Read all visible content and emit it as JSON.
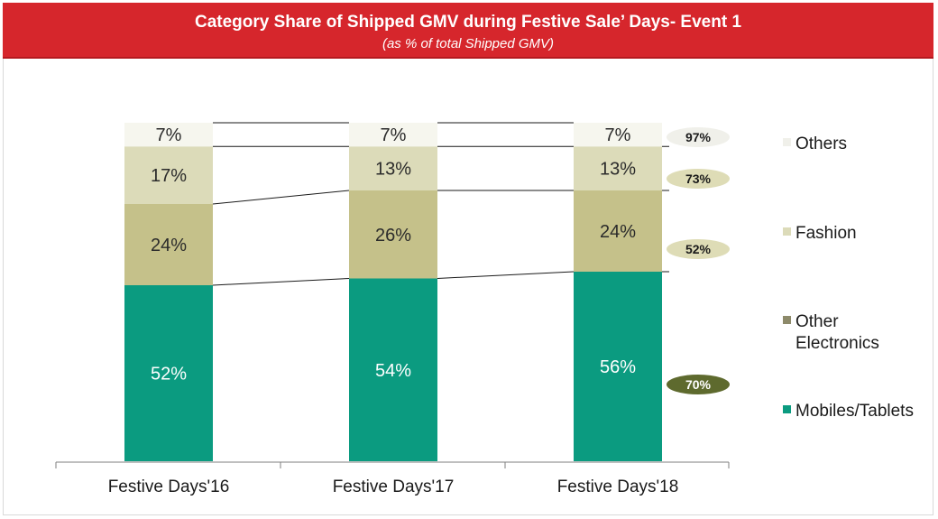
{
  "title": "Category Share of Shipped GMV during Festive Sale’ Days- Event 1",
  "subtitle": "(as % of total Shipped GMV)",
  "colors": {
    "banner": "#d6262c",
    "Mobiles/Tablets": "#0b9b80",
    "Other Electronics": "#c5c18a",
    "Fashion": "#dcdbb9",
    "Others": "#f6f6ee",
    "growth_dark": "#5e6a2e",
    "growth_light": "#dedcb6",
    "growth_pale": "#f0f0ea"
  },
  "chart_data": {
    "type": "bar",
    "stacked": true,
    "categories": [
      "Festive Days'16",
      "Festive Days'17",
      "Festive Days'18"
    ],
    "series": [
      {
        "name": "Mobiles/Tablets",
        "values": [
          52,
          54,
          56
        ],
        "labels": [
          "52%",
          "54%",
          "56%"
        ]
      },
      {
        "name": "Other Electronics",
        "values": [
          24,
          26,
          24
        ],
        "labels": [
          "24%",
          "26%",
          "24%"
        ]
      },
      {
        "name": "Fashion",
        "values": [
          17,
          13,
          13
        ],
        "labels": [
          "17%",
          "13%",
          "13%"
        ]
      },
      {
        "name": "Others",
        "values": [
          7,
          7,
          7
        ],
        "labels": [
          "7%",
          "7%",
          "7%"
        ]
      }
    ],
    "legend": {
      "position": "right",
      "items": [
        {
          "series": "Others",
          "lines": [
            "Others"
          ]
        },
        {
          "series": "Fashion",
          "lines": [
            "Fashion"
          ]
        },
        {
          "series": "Other Electronics",
          "lines": [
            "Other",
            "Electronics"
          ]
        },
        {
          "series": "Mobiles/Tablets",
          "lines": [
            "Mobiles/Tablets"
          ]
        }
      ]
    },
    "growth_annotations": [
      {
        "series": "Others",
        "label": "97%",
        "style": "pale"
      },
      {
        "series": "Fashion",
        "label": "73%",
        "style": "light"
      },
      {
        "series": "Other Electronics",
        "label": "52%",
        "style": "light"
      },
      {
        "series": "Mobiles/Tablets",
        "label": "70%",
        "style": "dark"
      }
    ],
    "ylim": [
      0,
      100
    ],
    "grid": false,
    "xlabel": "",
    "ylabel": ""
  }
}
